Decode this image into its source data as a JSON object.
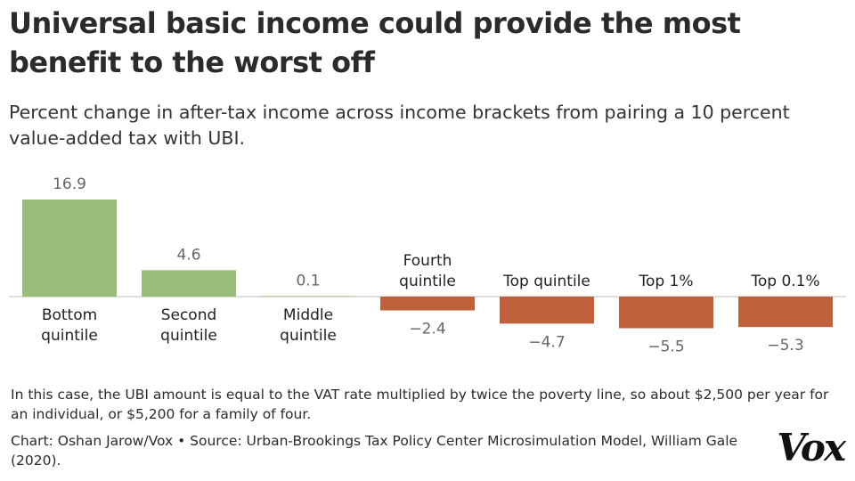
{
  "header": {
    "title": "Universal basic income could provide the most benefit to the worst off",
    "subtitle": "Percent change in after-tax income across income brackets from pairing a 10 percent value-added tax with UBI."
  },
  "chart_data": {
    "type": "bar",
    "categories": [
      [
        "Bottom",
        "quintile"
      ],
      [
        "Second",
        "quintile"
      ],
      [
        "Middle",
        "quintile"
      ],
      [
        "Fourth",
        "quintile"
      ],
      [
        "Top quintile"
      ],
      [
        "Top 1%"
      ],
      [
        "Top 0.1%"
      ]
    ],
    "values": [
      16.9,
      4.6,
      0.1,
      -2.4,
      -4.7,
      -5.5,
      -5.3
    ],
    "value_labels": [
      "16.9",
      "4.6",
      "0.1",
      "−2.4",
      "−4.7",
      "−5.5",
      "−5.3"
    ],
    "ylim": [
      -5.5,
      16.9
    ],
    "grid": false,
    "colors": {
      "positive": "#98bd78",
      "negative": "#c0603c",
      "value_label": "#666666",
      "category_label": "#222222",
      "baseline": "#bbbbbb"
    }
  },
  "footer": {
    "note": "In this case, the UBI amount is equal to the VAT rate multiplied by twice the poverty line, so about $2,500 per year for an individual, or $5,200 for a family of four.",
    "credit": "Chart: Oshan Jarow/Vox • Source: Urban-Brookings Tax Policy Center Microsimulation Model, William Gale (2020).",
    "logo": "Vox"
  }
}
